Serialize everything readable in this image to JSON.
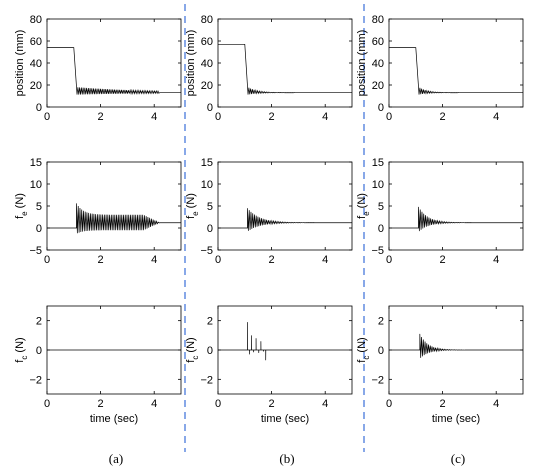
{
  "chart_data": [
    {
      "type": "line",
      "column": "a",
      "row": "position",
      "ylabel": "position (mm)",
      "xlabel": "",
      "xlim": [
        0,
        5
      ],
      "ylim": [
        0,
        80
      ],
      "xticks": [
        "0",
        "2",
        "4"
      ],
      "yticks": [
        "0",
        "20",
        "40",
        "60",
        "80"
      ],
      "signal": {
        "kind": "step",
        "start_value": 54,
        "end_value": 13,
        "step_start_time": 1.0,
        "step_end_time": 1.12,
        "osc_amplitude": 5,
        "osc_decay_time": 2.5,
        "end_time": 4.2,
        "osc_period": 0.065
      }
    },
    {
      "type": "line",
      "column": "b",
      "row": "position",
      "ylabel": "position (mm)",
      "xlabel": "",
      "xlim": [
        0,
        5
      ],
      "ylim": [
        0,
        80
      ],
      "xticks": [
        "0",
        "2",
        "4"
      ],
      "yticks": [
        "0",
        "20",
        "40",
        "60",
        "80"
      ],
      "signal": {
        "kind": "step",
        "start_value": 57,
        "end_value": 13,
        "step_start_time": 1.0,
        "step_end_time": 1.12,
        "osc_amplitude": 5,
        "osc_decay_time": 0.35,
        "end_time": 5,
        "osc_period": 0.065
      }
    },
    {
      "type": "line",
      "column": "c",
      "row": "position",
      "ylabel": "position (mm)",
      "xlabel": "",
      "xlim": [
        0,
        5
      ],
      "ylim": [
        0,
        80
      ],
      "xticks": [
        "0",
        "2",
        "4"
      ],
      "yticks": [
        "0",
        "20",
        "40",
        "60",
        "80"
      ],
      "signal": {
        "kind": "step",
        "start_value": 54,
        "end_value": 13,
        "step_start_time": 1.0,
        "step_end_time": 1.12,
        "osc_amplitude": 5,
        "osc_decay_time": 0.3,
        "end_time": 5,
        "osc_period": 0.065
      }
    },
    {
      "type": "line",
      "column": "a",
      "row": "fe",
      "ylabel": "f",
      "ylabel_sub": "e",
      "ylabel_unit": " (N)",
      "xlabel": "",
      "xlim": [
        0,
        5
      ],
      "ylim": [
        -5,
        15
      ],
      "xticks": [
        "0",
        "2",
        "4"
      ],
      "yticks": [
        "−5",
        "0",
        "5",
        "10",
        "15"
      ],
      "signal": {
        "kind": "osc",
        "baseline_before": 0,
        "baseline_after": 1.2,
        "onset_time": 1.1,
        "end_time": 5,
        "first_peak": 5.6,
        "first_trough": -1.3,
        "sustained_peak": 3.0,
        "sustained_trough": -0.5,
        "fade_start_time": 3.6,
        "fade_end_time": 4.2,
        "osc_period": 0.065
      }
    },
    {
      "type": "line",
      "column": "b",
      "row": "fe",
      "ylabel": "f",
      "ylabel_sub": "e",
      "ylabel_unit": " (N)",
      "xlabel": "",
      "xlim": [
        0,
        5
      ],
      "ylim": [
        -5,
        15
      ],
      "xticks": [
        "0",
        "2",
        "4"
      ],
      "yticks": [
        "−5",
        "0",
        "5",
        "10",
        "15"
      ],
      "signal": {
        "kind": "decay",
        "baseline_before": 0,
        "baseline_after": 1.2,
        "onset_time": 1.1,
        "end_time": 5,
        "first_peak": 4.5,
        "first_trough": -0.8,
        "decay_time": 0.45,
        "osc_period": 0.065
      }
    },
    {
      "type": "line",
      "column": "c",
      "row": "fe",
      "ylabel": "f",
      "ylabel_sub": "e",
      "ylabel_unit": " (N)",
      "xlabel": "",
      "xlim": [
        0,
        5
      ],
      "ylim": [
        -5,
        15
      ],
      "xticks": [
        "0",
        "2",
        "4"
      ],
      "yticks": [
        "−5",
        "0",
        "5",
        "10",
        "15"
      ],
      "signal": {
        "kind": "decay",
        "baseline_before": 0,
        "baseline_after": 1.2,
        "onset_time": 1.1,
        "end_time": 5,
        "first_peak": 4.8,
        "first_trough": -0.9,
        "decay_time": 0.35,
        "osc_period": 0.065
      }
    },
    {
      "type": "line",
      "column": "a",
      "row": "fc",
      "ylabel": "f",
      "ylabel_sub": "c",
      "ylabel_unit": " (N)",
      "xlabel": "time (sec)",
      "xlim": [
        0,
        5
      ],
      "ylim": [
        -3,
        3
      ],
      "xticks": [
        "0",
        "2",
        "4"
      ],
      "yticks": [
        "−2",
        "0",
        "2"
      ],
      "signal": {
        "kind": "flat",
        "value": 0
      }
    },
    {
      "type": "line",
      "column": "b",
      "row": "fc",
      "ylabel": "f",
      "ylabel_sub": "c",
      "ylabel_unit": " (N)",
      "xlabel": "time (sec)",
      "xlim": [
        0,
        5
      ],
      "ylim": [
        -3,
        3
      ],
      "xticks": [
        "0",
        "2",
        "4"
      ],
      "yticks": [
        "−2",
        "0",
        "2"
      ],
      "signal": {
        "kind": "spikes",
        "spikes": [
          [
            1.1,
            1.9
          ],
          [
            1.17,
            -0.3
          ],
          [
            1.25,
            1.0
          ],
          [
            1.33,
            -0.15
          ],
          [
            1.42,
            0.8
          ],
          [
            1.52,
            -0.2
          ],
          [
            1.6,
            0.6
          ],
          [
            1.7,
            -0.1
          ],
          [
            1.78,
            -0.7
          ]
        ]
      }
    },
    {
      "type": "line",
      "column": "c",
      "row": "fc",
      "ylabel": "f",
      "ylabel_sub": "c",
      "ylabel_unit": " (N)",
      "xlabel": "time (sec)",
      "xlim": [
        0,
        5
      ],
      "ylim": [
        -3,
        3
      ],
      "xticks": [
        "0",
        "2",
        "4"
      ],
      "yticks": [
        "−2",
        "0",
        "2"
      ],
      "signal": {
        "kind": "decay",
        "baseline_before": 0,
        "baseline_after": 0,
        "onset_time": 1.15,
        "end_time": 5,
        "first_peak": 1.1,
        "first_trough": -0.6,
        "decay_time": 0.3,
        "osc_period": 0.065
      }
    }
  ],
  "captions": [
    "(a)",
    "(b)",
    "(c)"
  ],
  "colors": {
    "line": "#000000",
    "separator": "#3a6fd8"
  }
}
